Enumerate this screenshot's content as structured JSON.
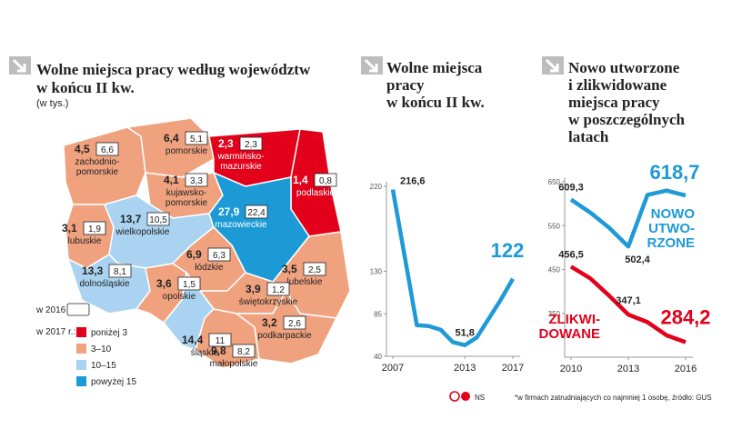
{
  "chart_data": [
    {
      "type": "map",
      "title": "Wolne miejsca pracy według województw\nw końcu II kw.",
      "subtitle": "(w tys.)",
      "regions": [
        "zachodnio-\npomorskie",
        "pomorskie",
        "warmińsko-\nmazurskie",
        "podlaskie",
        "kujawsko-\npomorskie",
        "lubuskie",
        "wielkopolskie",
        "mazowieckie",
        "dolnośląskie",
        "łódzkie",
        "lubelskie",
        "opolskie",
        "świętokrzyskie",
        "śląskie",
        "małopolskie",
        "podkarpackie"
      ],
      "colors": [
        "#f0a27f",
        "#f0a27f",
        "#e2001a",
        "#e2001a",
        "#f0a27f",
        "#f0a27f",
        "#a9d3f0",
        "#1b9ad6",
        "#a9d3f0",
        "#f0a27f",
        "#f0a27f",
        "#f0a27f",
        "#f0a27f",
        "#a9d3f0",
        "#f0a27f",
        "#f0a27f"
      ],
      "series": [
        {
          "name": "w 2017 r.:",
          "values": [
            4.5,
            6.4,
            2.3,
            1.4,
            4.1,
            3.1,
            13.7,
            27.9,
            13.3,
            6.9,
            3.5,
            3.6,
            3.9,
            14.4,
            9.8,
            3.2
          ],
          "value_labels": [
            "4,5",
            "6,4",
            "2,3",
            "1,4",
            "4,1",
            "3,1",
            "13,7",
            "27,9",
            "13,3",
            "6,9",
            "3,5",
            "3,6",
            "3,9",
            "14,4",
            "9,8",
            "3,2"
          ]
        },
        {
          "name": "w 2016 r.",
          "values": [
            6.6,
            5.1,
            2.3,
            0.8,
            3.3,
            1.9,
            10.5,
            22.4,
            8.1,
            6.3,
            2.5,
            1.5,
            1.2,
            11,
            8.2,
            2.6
          ],
          "value_labels": [
            "6,6",
            "5,1",
            "2,3",
            "0,8",
            "3,3",
            "1,9",
            "10,5",
            "22,4",
            "8,1",
            "6,3",
            "2,5",
            "1,5",
            "1,2",
            "11",
            "8,2",
            "2,6"
          ]
        }
      ],
      "legend": [
        {
          "label": "poniżej 3",
          "color": "#e2001a"
        },
        {
          "label": "3–10",
          "color": "#f0a27f"
        },
        {
          "label": "10–15",
          "color": "#a9d3f0"
        },
        {
          "label": "powyżej 15",
          "color": "#1b9ad6"
        }
      ]
    },
    {
      "type": "line",
      "title": "Wolne miejsca\npracy\nw końcu II kw.",
      "x": [
        2007,
        2008,
        2009,
        2010,
        2011,
        2012,
        2013,
        2014,
        2015,
        2016,
        2017
      ],
      "values": [
        216.6,
        145,
        73,
        72,
        68,
        55,
        51.8,
        60,
        80,
        100,
        122
      ],
      "value_labels": [
        "216,6",
        null,
        null,
        null,
        null,
        null,
        "51,8",
        null,
        null,
        null,
        "122"
      ],
      "color": "#1e9ad6",
      "xlim": [
        2007,
        2017
      ],
      "xticks": [
        2007,
        2013,
        2017
      ],
      "ylim": [
        40,
        220
      ],
      "yticks": [
        40,
        85,
        130,
        220
      ]
    },
    {
      "type": "line",
      "title": "Nowo utworzone\ni zlikwidowane\nmiejsca pracy\nw poszczególnych\nlatach",
      "x": [
        2010,
        2011,
        2012,
        2013,
        2014,
        2015,
        2016
      ],
      "series": [
        {
          "name": "NOWO\nUTWO-\nRZONE",
          "color": "#1e9ad6",
          "values": [
            609.3,
            580,
            545,
            502.4,
            620,
            630,
            618.7
          ],
          "value_labels": [
            "609,3",
            null,
            null,
            "502,4",
            null,
            null,
            "618,7"
          ]
        },
        {
          "name": "ZLIKWI-\nDOWANE",
          "color": "#e2001a",
          "values": [
            456.5,
            430,
            390,
            347.1,
            330,
            300,
            284.2
          ],
          "value_labels": [
            "456,5",
            null,
            null,
            "347,1",
            null,
            null,
            "284,2"
          ]
        }
      ],
      "xlim": [
        2010,
        2016
      ],
      "xticks": [
        2010,
        2013,
        2016
      ],
      "ylim": [
        250,
        650
      ],
      "yticks": [
        350,
        450,
        550,
        650
      ]
    }
  ],
  "logo": "NS",
  "source": "*w firmach zatrudniających co najmniej 1 osobę, źródło: GUS"
}
